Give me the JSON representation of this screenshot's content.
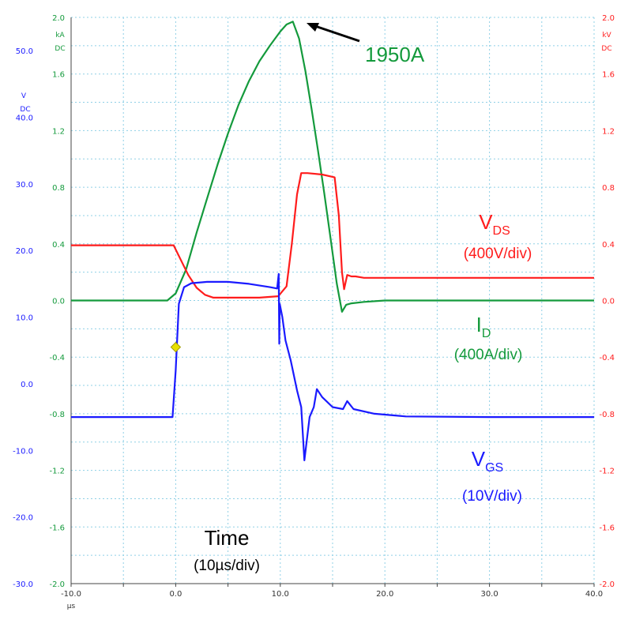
{
  "colors": {
    "vgs": "#1a1aff",
    "id": "#149a3c",
    "vds": "#ff1c1c",
    "grid": "#8fd0e6",
    "axis": "#444444",
    "marker": "#e8e000"
  },
  "chart_data": {
    "type": "line",
    "title": "",
    "xlabel": "Time",
    "grid": true,
    "x_axis": {
      "unit": "µs",
      "range": [
        -10,
        40
      ],
      "ticks": [
        "-10.0",
        "0.0",
        "10.0",
        "20.0",
        "30.0",
        "40.0"
      ]
    },
    "y_axes": {
      "left": {
        "unit_lines": [
          "V",
          "DC"
        ],
        "range": [
          -30,
          55
        ],
        "ticks": [
          "50.0",
          "40.0",
          "30.0",
          "20.0",
          "10.0",
          "0.0",
          "-10.0",
          "-20.0",
          "-30.0"
        ]
      },
      "inner_left": {
        "unit_lines": [
          "kA",
          "DC"
        ],
        "range": [
          -2.0,
          2.0
        ],
        "ticks": [
          "2.0",
          "1.6",
          "1.2",
          "0.8",
          "0.4",
          "0.0",
          "-0.4",
          "-0.8",
          "-1.2",
          "-1.6",
          "-2.0"
        ]
      },
      "right": {
        "unit_lines": [
          "kV",
          "DC"
        ],
        "range": [
          -2.0,
          2.0
        ],
        "ticks": [
          "2.0",
          "1.6",
          "1.2",
          "0.8",
          "0.4",
          "0.0",
          "-0.4",
          "-0.8",
          "-1.2",
          "-1.6",
          "-2.0"
        ]
      }
    },
    "series": [
      {
        "axis": "inner_left",
        "color": "#149a3c",
        "label_main": "I",
        "label_sub": "D",
        "label_scale": "(400A/div)",
        "x": [
          -10,
          -0.8,
          0,
          1,
          2,
          3,
          4,
          5,
          6,
          7,
          8,
          9,
          10,
          10.6,
          11.2,
          11.8,
          12.4,
          13,
          13.6,
          14.2,
          14.8,
          15.4,
          15.9,
          16.3,
          16.8,
          18,
          20,
          30,
          40
        ],
        "y": [
          0.0,
          0.0,
          0.05,
          0.22,
          0.48,
          0.72,
          0.96,
          1.18,
          1.38,
          1.55,
          1.69,
          1.8,
          1.9,
          1.95,
          1.97,
          1.85,
          1.62,
          1.35,
          1.06,
          0.76,
          0.44,
          0.12,
          -0.08,
          -0.03,
          -0.02,
          -0.01,
          0.0,
          0.0,
          0.0
        ]
      },
      {
        "axis": "right",
        "color": "#ff1c1c",
        "label_main": "V",
        "label_sub": "DS",
        "label_scale": "(400V/div)",
        "x": [
          -10,
          -0.2,
          0.4,
          1.2,
          2,
          2.8,
          3.6,
          4.6,
          6,
          8,
          9.8,
          10.6,
          11.1,
          11.6,
          12,
          12.6,
          14,
          15.2,
          15.6,
          15.9,
          16.1,
          16.4,
          16.8,
          17.2,
          18,
          20,
          25,
          30,
          40
        ],
        "y": [
          0.39,
          0.39,
          0.3,
          0.18,
          0.09,
          0.04,
          0.02,
          0.02,
          0.02,
          0.02,
          0.03,
          0.1,
          0.4,
          0.75,
          0.9,
          0.9,
          0.89,
          0.87,
          0.6,
          0.2,
          0.08,
          0.18,
          0.17,
          0.17,
          0.16,
          0.16,
          0.16,
          0.16,
          0.16
        ]
      },
      {
        "axis": "left",
        "color": "#1a1aff",
        "label_main": "V",
        "label_sub": "GS",
        "label_scale": "(10V/div)",
        "x": [
          -10,
          -0.3,
          0,
          0.3,
          0.8,
          1.5,
          3,
          5,
          7,
          9,
          9.7,
          9.85,
          9.9,
          9.95,
          10.2,
          10.5,
          11,
          11.6,
          12.0,
          12.3,
          12.8,
          13.2,
          13.5,
          14,
          15,
          16,
          16.4,
          17,
          19,
          22,
          30,
          40
        ],
        "y": [
          -5,
          -5,
          2,
          12,
          14.5,
          15.1,
          15.3,
          15.3,
          15.0,
          14.5,
          14.3,
          16.5,
          6,
          12,
          10,
          6.5,
          3.5,
          -1,
          -3.5,
          -11.5,
          -5,
          -3.5,
          -0.8,
          -2,
          -3.5,
          -3.8,
          -2.6,
          -3.8,
          -4.5,
          -4.9,
          -5,
          -5
        ]
      }
    ],
    "marker": {
      "axis": "left",
      "x": 0,
      "y": 5.5
    },
    "annotations": {
      "peak_label": "1950A",
      "time_label": "Time",
      "time_scale": "(10µs/div)"
    }
  }
}
